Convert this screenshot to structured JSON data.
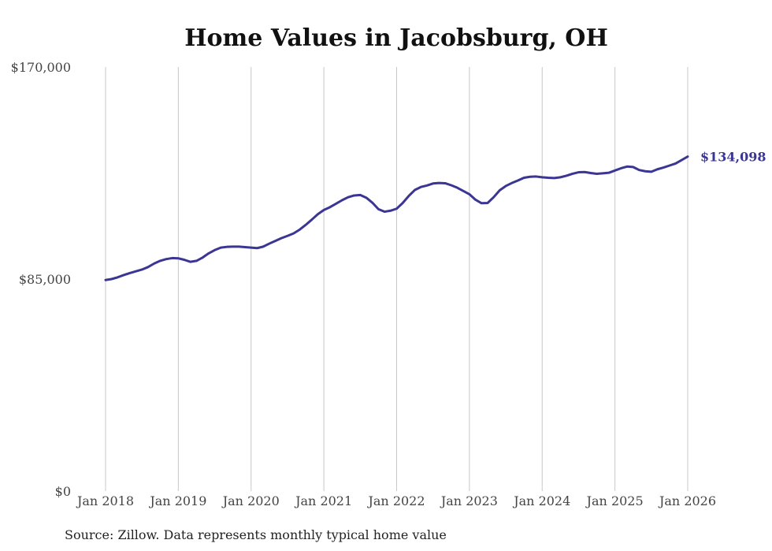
{
  "chart_data": {
    "type": "line",
    "title": "Home Values in Jacobsburg, OH",
    "xlabel": "",
    "ylabel": "",
    "x_ticks": [
      "Jan 2018",
      "Jan 2019",
      "Jan 2020",
      "Jan 2021",
      "Jan 2022",
      "Jan 2023",
      "Jan 2024",
      "Jan 2025",
      "Jan 2026"
    ],
    "y_ticks": [
      {
        "value": 0,
        "label": "$0"
      },
      {
        "value": 85000,
        "label": "$85,000"
      },
      {
        "value": 170000,
        "label": "$170,000"
      }
    ],
    "ylim": [
      0,
      170000
    ],
    "grid": "vertical",
    "line_color": "#3b3594",
    "series": [
      {
        "name": "Typical home value",
        "start": "Jan 2018",
        "frequency": "monthly",
        "values": [
          84600,
          85000,
          85700,
          86600,
          87400,
          88100,
          88800,
          89800,
          91200,
          92300,
          93000,
          93400,
          93300,
          92700,
          91900,
          92300,
          93600,
          95300,
          96600,
          97600,
          97900,
          98000,
          98000,
          97800,
          97600,
          97400,
          98000,
          99200,
          100300,
          101400,
          102300,
          103300,
          104800,
          106700,
          108800,
          111000,
          112700,
          113800,
          115200,
          116600,
          117800,
          118500,
          118700,
          117600,
          115600,
          113000,
          112000,
          112400,
          113200,
          115500,
          118300,
          120700,
          121900,
          122500,
          123300,
          123500,
          123400,
          122600,
          121600,
          120300,
          119000,
          116800,
          115400,
          115500,
          117800,
          120600,
          122300,
          123500,
          124500,
          125600,
          126000,
          126100,
          125800,
          125600,
          125500,
          125800,
          126400,
          127200,
          127800,
          127900,
          127500,
          127200,
          127400,
          127600,
          128500,
          129400,
          130100,
          129900,
          128700,
          128200,
          128000,
          129000,
          129700,
          130500,
          131300,
          132700,
          134098
        ]
      }
    ],
    "last_value_label": "$134,098"
  },
  "source": "Source: Zillow. Data represents monthly typical home value"
}
